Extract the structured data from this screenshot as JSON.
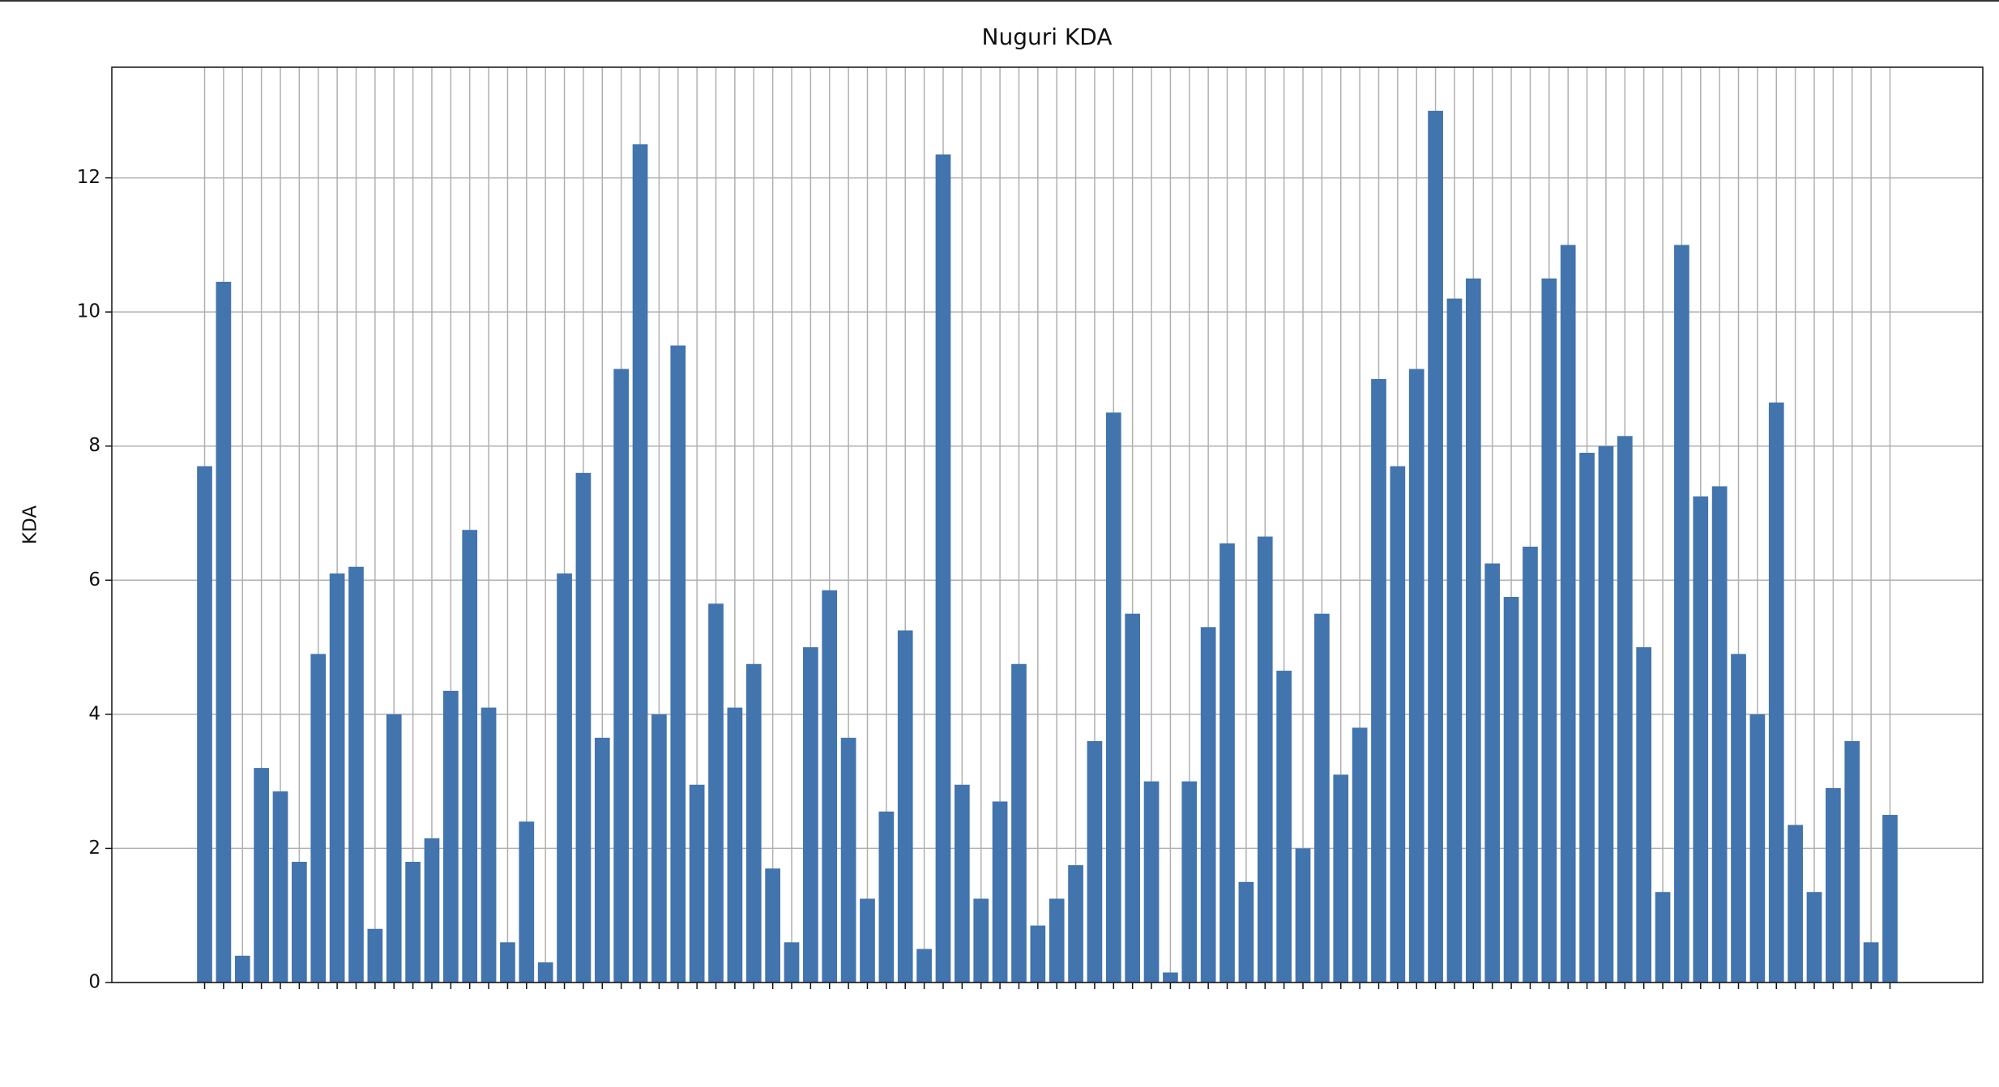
{
  "chart_data": {
    "type": "bar",
    "title": "Nuguri KDA",
    "y_label": "KDA",
    "categories": [
      null,
      null,
      null,
      null,
      null,
      null,
      null,
      null,
      null,
      null,
      null,
      null,
      null,
      null,
      null,
      null,
      null,
      null,
      null,
      null,
      null,
      null,
      null,
      null,
      null,
      null,
      null,
      null,
      null,
      null,
      null,
      null,
      null,
      null,
      null,
      null,
      null,
      null,
      null,
      null,
      null,
      null,
      null,
      null,
      null,
      null,
      null,
      null,
      null,
      null,
      null,
      null,
      null,
      null,
      null,
      null,
      null,
      null,
      null,
      null,
      null,
      null,
      null,
      null,
      null,
      null,
      null,
      null,
      null,
      null,
      null,
      null,
      null,
      null,
      null,
      null,
      null,
      null,
      null,
      null,
      null,
      null,
      null,
      null,
      null,
      null,
      null,
      null,
      null,
      null
    ],
    "values": [
      7.7,
      10.45,
      0.4,
      3.2,
      2.85,
      1.8,
      4.9,
      6.1,
      6.2,
      0.8,
      4.0,
      1.8,
      2.15,
      4.35,
      6.75,
      4.1,
      0.6,
      2.4,
      0.3,
      6.1,
      7.6,
      3.65,
      9.15,
      12.5,
      4.0,
      9.5,
      2.95,
      5.65,
      4.1,
      4.75,
      1.7,
      0.6,
      5.0,
      5.85,
      3.65,
      1.25,
      2.55,
      5.25,
      0.5,
      12.35,
      2.95,
      1.25,
      2.7,
      4.75,
      0.85,
      1.25,
      1.75,
      3.6,
      8.5,
      5.5,
      3.0,
      0.15,
      3.0,
      5.3,
      6.55,
      1.5,
      6.65,
      4.65,
      2.0,
      5.5,
      3.1,
      3.8,
      9.0,
      7.7,
      9.15,
      13.0,
      10.2,
      10.5,
      6.25,
      5.75,
      6.5,
      10.5,
      11.0,
      7.9,
      8.0,
      8.15,
      5.0,
      1.35,
      11.0,
      7.25,
      7.4,
      4.9,
      4.0,
      8.65,
      2.35,
      1.35,
      2.9,
      3.6,
      0.6,
      2.5
    ],
    "color": "#4274ae",
    "ylim": [
      0,
      13.65
    ],
    "yticks": [
      0,
      2,
      4,
      6,
      8,
      10,
      12
    ],
    "grid": true
  }
}
